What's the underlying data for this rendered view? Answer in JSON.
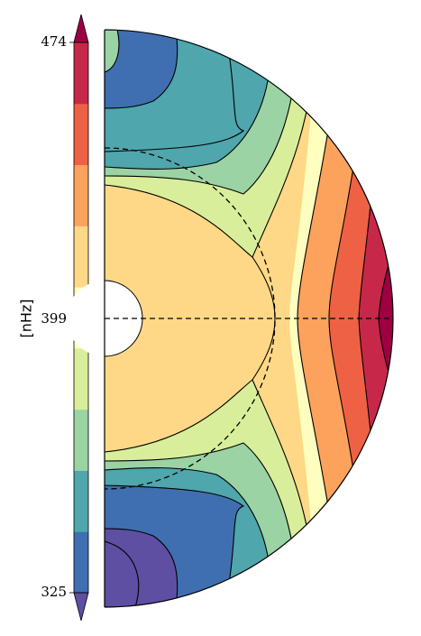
{
  "chart_data": {
    "type": "heatmap",
    "subtype": "meridional-contour-half-disk",
    "colorbar": {
      "label": "[nHz]",
      "min": 325,
      "max": 474,
      "ticks": [
        325,
        399,
        474
      ],
      "tick_labels": [
        "325",
        "399",
        "474"
      ],
      "extend": "both",
      "levels": [
        {
          "color": "#5E4FA2"
        },
        {
          "color": "#3F6FB0"
        },
        {
          "color": "#4FA6AC"
        },
        {
          "color": "#9BD3A4"
        },
        {
          "color": "#D8EE9A"
        },
        {
          "color": "#FEFEBF"
        },
        {
          "color": "#FED886"
        },
        {
          "color": "#FCA25D"
        },
        {
          "color": "#EF6144"
        },
        {
          "color": "#C7284A"
        },
        {
          "color": "#9E0142"
        }
      ]
    },
    "structure": {
      "inner_core_radius_fraction": 0.13,
      "tachocline_radius_fraction": 0.59,
      "equator_dashed_line": true,
      "tachocline_dashed_circle": true
    }
  }
}
